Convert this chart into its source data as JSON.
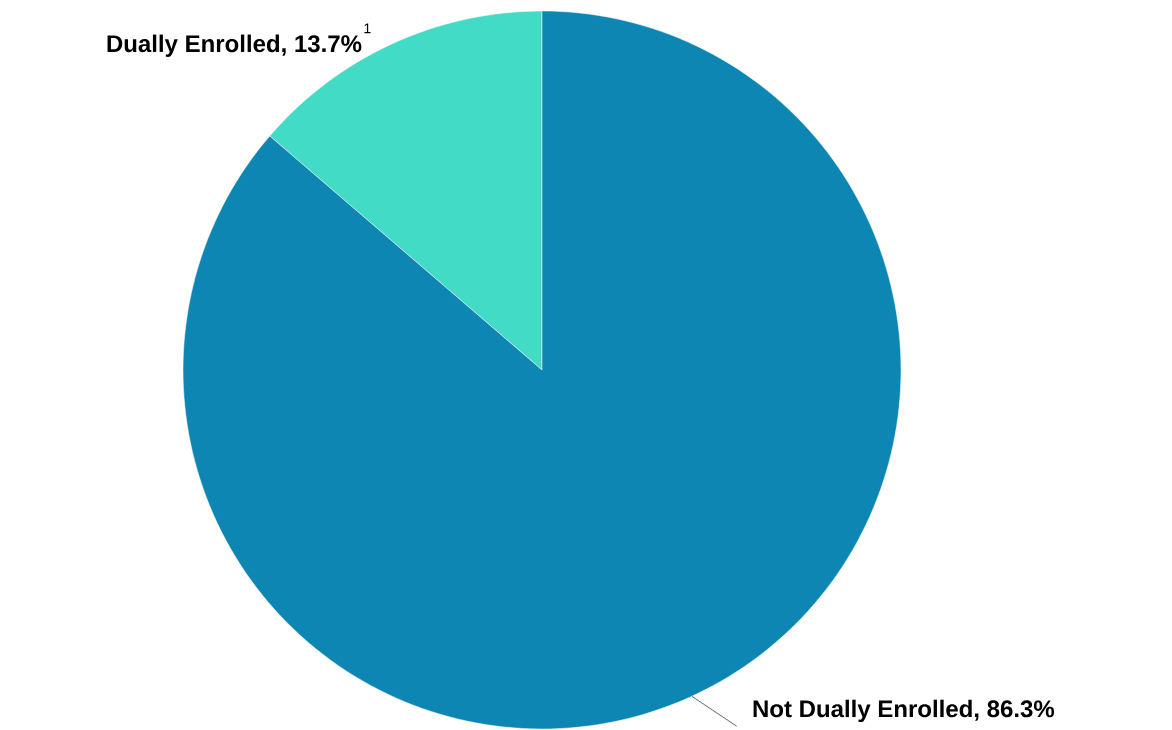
{
  "chart_data": {
    "type": "pie",
    "categories": [
      "Dually Enrolled",
      "Not Dually Enrolled"
    ],
    "values": [
      13.7,
      86.3
    ],
    "colors": [
      "#42dbc6",
      "#0e86b4"
    ],
    "value_labels": [
      ", 13.7%",
      ", 86.3%"
    ],
    "annotations": [
      "1"
    ]
  }
}
